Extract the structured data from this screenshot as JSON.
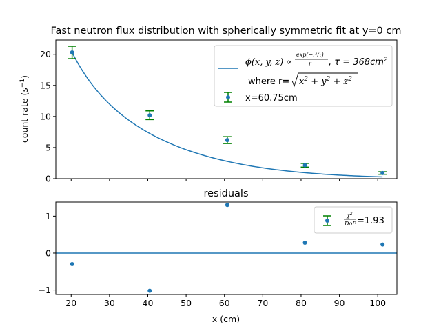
{
  "chart_data": [
    {
      "type": "scatter",
      "title": "Fast neutron flux distribution with spherically symmetric fit at y=0 cm",
      "xlabel": "",
      "ylabel": "count rate (s⁻¹)",
      "xlim": [
        16,
        105
      ],
      "ylim": [
        0,
        22.3
      ],
      "yticks": [
        0,
        5,
        10,
        15,
        20
      ],
      "grid": false,
      "legend_position": "top-right",
      "colors": {
        "points": "#1f77b4",
        "errorbars": "#008000",
        "fit": "#1f77b4"
      },
      "points": [
        {
          "x": 20.25,
          "y": 20.3,
          "err": 1.0
        },
        {
          "x": 40.5,
          "y": 10.2,
          "err": 0.7
        },
        {
          "x": 60.75,
          "y": 6.2,
          "err": 0.55
        },
        {
          "x": 81.0,
          "y": 2.15,
          "err": 0.3
        },
        {
          "x": 101.25,
          "y": 0.9,
          "err": 0.2
        }
      ],
      "fit": {
        "formula": "ϕ(x,y,z) ∝ exp(−r²/τ)/r, τ = 368cm²",
        "where": "where r=√(x² + y² + z²)",
        "tau_label": "τ = 368cm²"
      },
      "legend": {
        "fit_label_line1": "ϕ(x, y, z) ∝",
        "fit_label_tau": ", τ = 368cm²",
        "fit_label_line2": "where r=√x² + y² + z²",
        "points_label": "x=60.75cm"
      }
    },
    {
      "type": "scatter",
      "title": "residuals",
      "xlabel": "x (cm)",
      "ylabel": "",
      "xlim": [
        16,
        105
      ],
      "ylim": [
        -1.12,
        1.38
      ],
      "xticks": [
        20,
        30,
        40,
        50,
        60,
        70,
        80,
        90,
        100
      ],
      "yticks": [
        -1,
        0,
        1
      ],
      "grid": false,
      "legend_position": "top-right",
      "zero_line": 0,
      "colors": {
        "points": "#1f77b4",
        "errorbars": "#008000",
        "zero_line": "#1f77b4"
      },
      "points": [
        {
          "x": 20.25,
          "y": -0.3
        },
        {
          "x": 40.5,
          "y": -1.02
        },
        {
          "x": 60.75,
          "y": 1.3
        },
        {
          "x": 81.0,
          "y": 0.28
        },
        {
          "x": 101.25,
          "y": 0.23
        }
      ],
      "legend": {
        "chi_label": "χ²/DoF=1.93",
        "chi_value": "=1.93"
      }
    }
  ]
}
